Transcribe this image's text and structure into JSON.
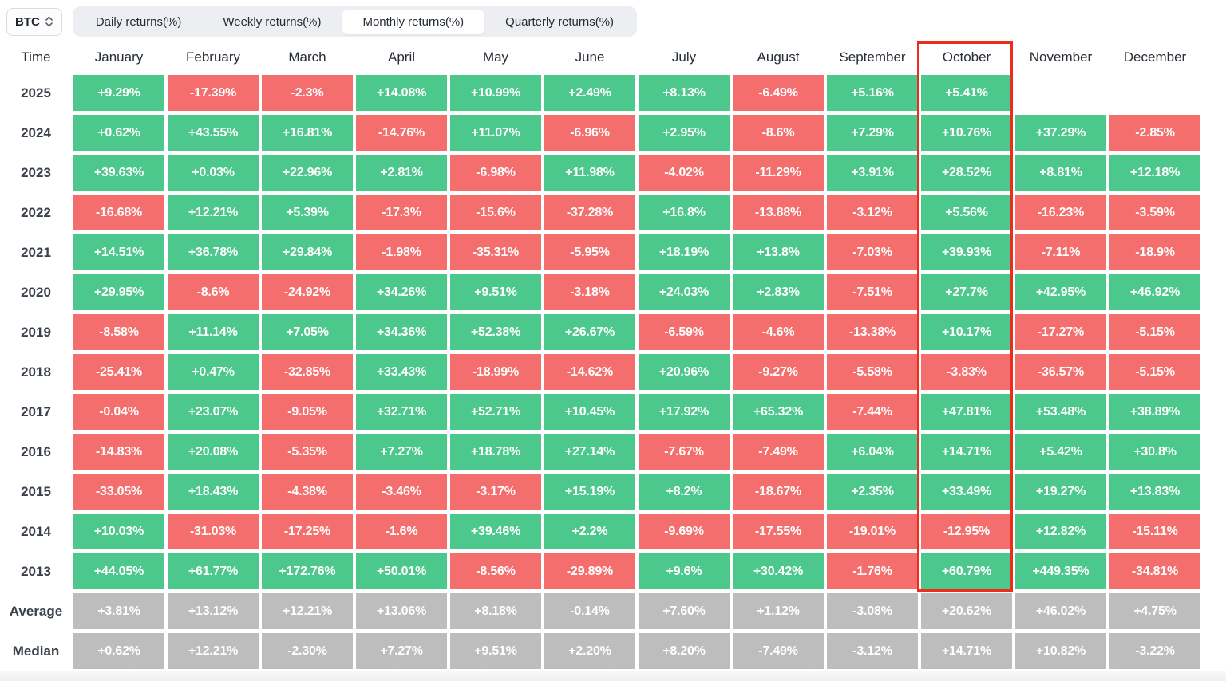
{
  "header": {
    "symbol": "BTC",
    "tabs": [
      "Daily returns(%)",
      "Weekly returns(%)",
      "Monthly returns(%)",
      "Quarterly returns(%)"
    ],
    "active_tab": "Monthly returns(%)"
  },
  "table": {
    "time_label": "Time",
    "months": [
      "January",
      "February",
      "March",
      "April",
      "May",
      "June",
      "July",
      "August",
      "September",
      "October",
      "November",
      "December"
    ],
    "highlighted_month": "October",
    "rows": [
      {
        "label": "2025",
        "type": "year",
        "values": [
          "+9.29%",
          "-17.39%",
          "-2.3%",
          "+14.08%",
          "+10.99%",
          "+2.49%",
          "+8.13%",
          "-6.49%",
          "+5.16%",
          "+5.41%",
          "",
          ""
        ]
      },
      {
        "label": "2024",
        "type": "year",
        "values": [
          "+0.62%",
          "+43.55%",
          "+16.81%",
          "-14.76%",
          "+11.07%",
          "-6.96%",
          "+2.95%",
          "-8.6%",
          "+7.29%",
          "+10.76%",
          "+37.29%",
          "-2.85%"
        ]
      },
      {
        "label": "2023",
        "type": "year",
        "values": [
          "+39.63%",
          "+0.03%",
          "+22.96%",
          "+2.81%",
          "-6.98%",
          "+11.98%",
          "-4.02%",
          "-11.29%",
          "+3.91%",
          "+28.52%",
          "+8.81%",
          "+12.18%"
        ]
      },
      {
        "label": "2022",
        "type": "year",
        "values": [
          "-16.68%",
          "+12.21%",
          "+5.39%",
          "-17.3%",
          "-15.6%",
          "-37.28%",
          "+16.8%",
          "-13.88%",
          "-3.12%",
          "+5.56%",
          "-16.23%",
          "-3.59%"
        ]
      },
      {
        "label": "2021",
        "type": "year",
        "values": [
          "+14.51%",
          "+36.78%",
          "+29.84%",
          "-1.98%",
          "-35.31%",
          "-5.95%",
          "+18.19%",
          "+13.8%",
          "-7.03%",
          "+39.93%",
          "-7.11%",
          "-18.9%"
        ]
      },
      {
        "label": "2020",
        "type": "year",
        "values": [
          "+29.95%",
          "-8.6%",
          "-24.92%",
          "+34.26%",
          "+9.51%",
          "-3.18%",
          "+24.03%",
          "+2.83%",
          "-7.51%",
          "+27.7%",
          "+42.95%",
          "+46.92%"
        ]
      },
      {
        "label": "2019",
        "type": "year",
        "values": [
          "-8.58%",
          "+11.14%",
          "+7.05%",
          "+34.36%",
          "+52.38%",
          "+26.67%",
          "-6.59%",
          "-4.6%",
          "-13.38%",
          "+10.17%",
          "-17.27%",
          "-5.15%"
        ]
      },
      {
        "label": "2018",
        "type": "year",
        "values": [
          "-25.41%",
          "+0.47%",
          "-32.85%",
          "+33.43%",
          "-18.99%",
          "-14.62%",
          "+20.96%",
          "-9.27%",
          "-5.58%",
          "-3.83%",
          "-36.57%",
          "-5.15%"
        ]
      },
      {
        "label": "2017",
        "type": "year",
        "values": [
          "-0.04%",
          "+23.07%",
          "-9.05%",
          "+32.71%",
          "+52.71%",
          "+10.45%",
          "+17.92%",
          "+65.32%",
          "-7.44%",
          "+47.81%",
          "+53.48%",
          "+38.89%"
        ]
      },
      {
        "label": "2016",
        "type": "year",
        "values": [
          "-14.83%",
          "+20.08%",
          "-5.35%",
          "+7.27%",
          "+18.78%",
          "+27.14%",
          "-7.67%",
          "-7.49%",
          "+6.04%",
          "+14.71%",
          "+5.42%",
          "+30.8%"
        ]
      },
      {
        "label": "2015",
        "type": "year",
        "values": [
          "-33.05%",
          "+18.43%",
          "-4.38%",
          "-3.46%",
          "-3.17%",
          "+15.19%",
          "+8.2%",
          "-18.67%",
          "+2.35%",
          "+33.49%",
          "+19.27%",
          "+13.83%"
        ]
      },
      {
        "label": "2014",
        "type": "year",
        "values": [
          "+10.03%",
          "-31.03%",
          "-17.25%",
          "-1.6%",
          "+39.46%",
          "+2.2%",
          "-9.69%",
          "-17.55%",
          "-19.01%",
          "-12.95%",
          "+12.82%",
          "-15.11%"
        ]
      },
      {
        "label": "2013",
        "type": "year",
        "values": [
          "+44.05%",
          "+61.77%",
          "+172.76%",
          "+50.01%",
          "-8.56%",
          "-29.89%",
          "+9.6%",
          "+30.42%",
          "-1.76%",
          "+60.79%",
          "+449.35%",
          "-34.81%"
        ]
      },
      {
        "label": "Average",
        "type": "summary",
        "values": [
          "+3.81%",
          "+13.12%",
          "+12.21%",
          "+13.06%",
          "+8.18%",
          "-0.14%",
          "+7.60%",
          "+1.12%",
          "-3.08%",
          "+20.62%",
          "+46.02%",
          "+4.75%"
        ]
      },
      {
        "label": "Median",
        "type": "summary",
        "values": [
          "+0.62%",
          "+12.21%",
          "-2.30%",
          "+7.27%",
          "+9.51%",
          "+2.20%",
          "+8.20%",
          "-7.49%",
          "-3.12%",
          "+14.71%",
          "+10.82%",
          "-3.22%"
        ]
      }
    ]
  },
  "colors": {
    "positive": "#4dc88c",
    "negative": "#f56e6e",
    "summary": "#bdbdbd",
    "highlight_border": "#ee2c1b"
  }
}
